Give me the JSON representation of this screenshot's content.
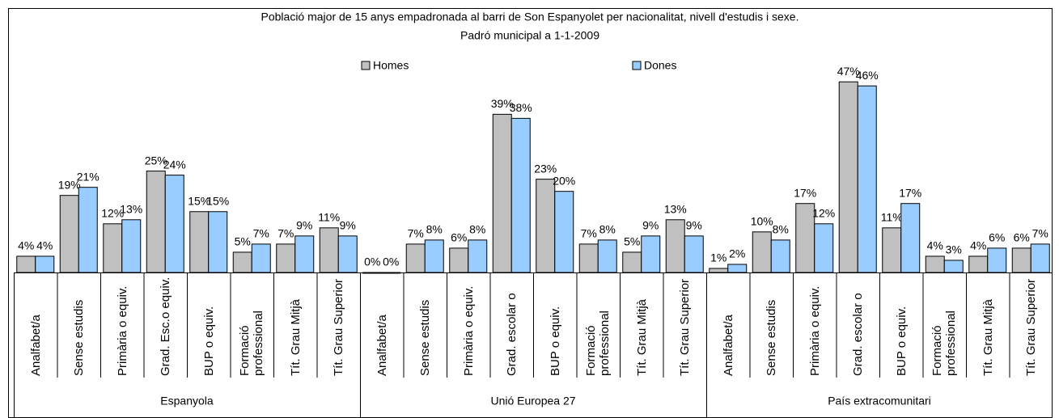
{
  "chart_data": {
    "type": "bar",
    "title": "Població major de 15 anys empadronada al barri de Son Espanyolet per nacionalitat, nivell d'estudis i sexe.",
    "subtitle": "Padró municipal a 1-1-2009",
    "categories": [
      "Analfabet/a",
      "Sense estudis",
      "Primària o equiv.",
      "Grad. Esc.o equiv.",
      "BUP o equiv.",
      "Formació professional",
      "Tít. Grau Mitjà",
      "Tít. Grau Superior",
      "Analfabet/a",
      "Sense estudis",
      "Primària o equiv.",
      "Grad. escolar o",
      "BUP o equiv.",
      "Formació professional",
      "Tít. Grau Mitjà",
      "Tít. Grau Superior",
      "Analfabet/a",
      "Sense estudis",
      "Primària o equiv.",
      "Grad. escolar o",
      "BUP o equiv.",
      "Formació professional",
      "Tít. Grau Mitjà",
      "Tít. Grau Superior"
    ],
    "groups": [
      "Espanyola",
      "Unió Europea 27",
      "País extracomunitari"
    ],
    "series": [
      {
        "name": "Homes",
        "color": "#c0c0c0",
        "values": [
          4,
          19,
          12,
          25,
          15,
          5,
          7,
          11,
          0,
          7,
          6,
          39,
          23,
          7,
          5,
          13,
          1,
          10,
          17,
          47,
          11,
          4,
          4,
          6
        ],
        "value_labels": [
          "4%",
          "19%",
          "12%",
          "25%",
          "15%",
          "5%",
          "7%",
          "11%",
          "0%",
          "7%",
          "6%",
          "39%",
          "23%",
          "7%",
          "5%",
          "13%",
          "1%",
          "10%",
          "17%",
          "47%",
          "11%",
          "4%",
          "4%",
          "6%"
        ]
      },
      {
        "name": "Dones",
        "color": "#99ccff",
        "values": [
          4,
          21,
          13,
          24,
          15,
          7,
          9,
          9,
          0,
          8,
          8,
          38,
          20,
          8,
          9,
          9,
          2,
          8,
          12,
          46,
          17,
          3,
          6,
          7
        ],
        "value_labels": [
          "4%",
          "21%",
          "13%",
          "24%",
          "15%",
          "7%",
          "9%",
          "9%",
          "0%",
          "8%",
          "8%",
          "38%",
          "20%",
          "8%",
          "9%",
          "9%",
          "2%",
          "8%",
          "12%",
          "46%",
          "17%",
          "3%",
          "6%",
          "7%"
        ]
      }
    ],
    "ylim": [
      0,
      60
    ],
    "legend": "top"
  }
}
